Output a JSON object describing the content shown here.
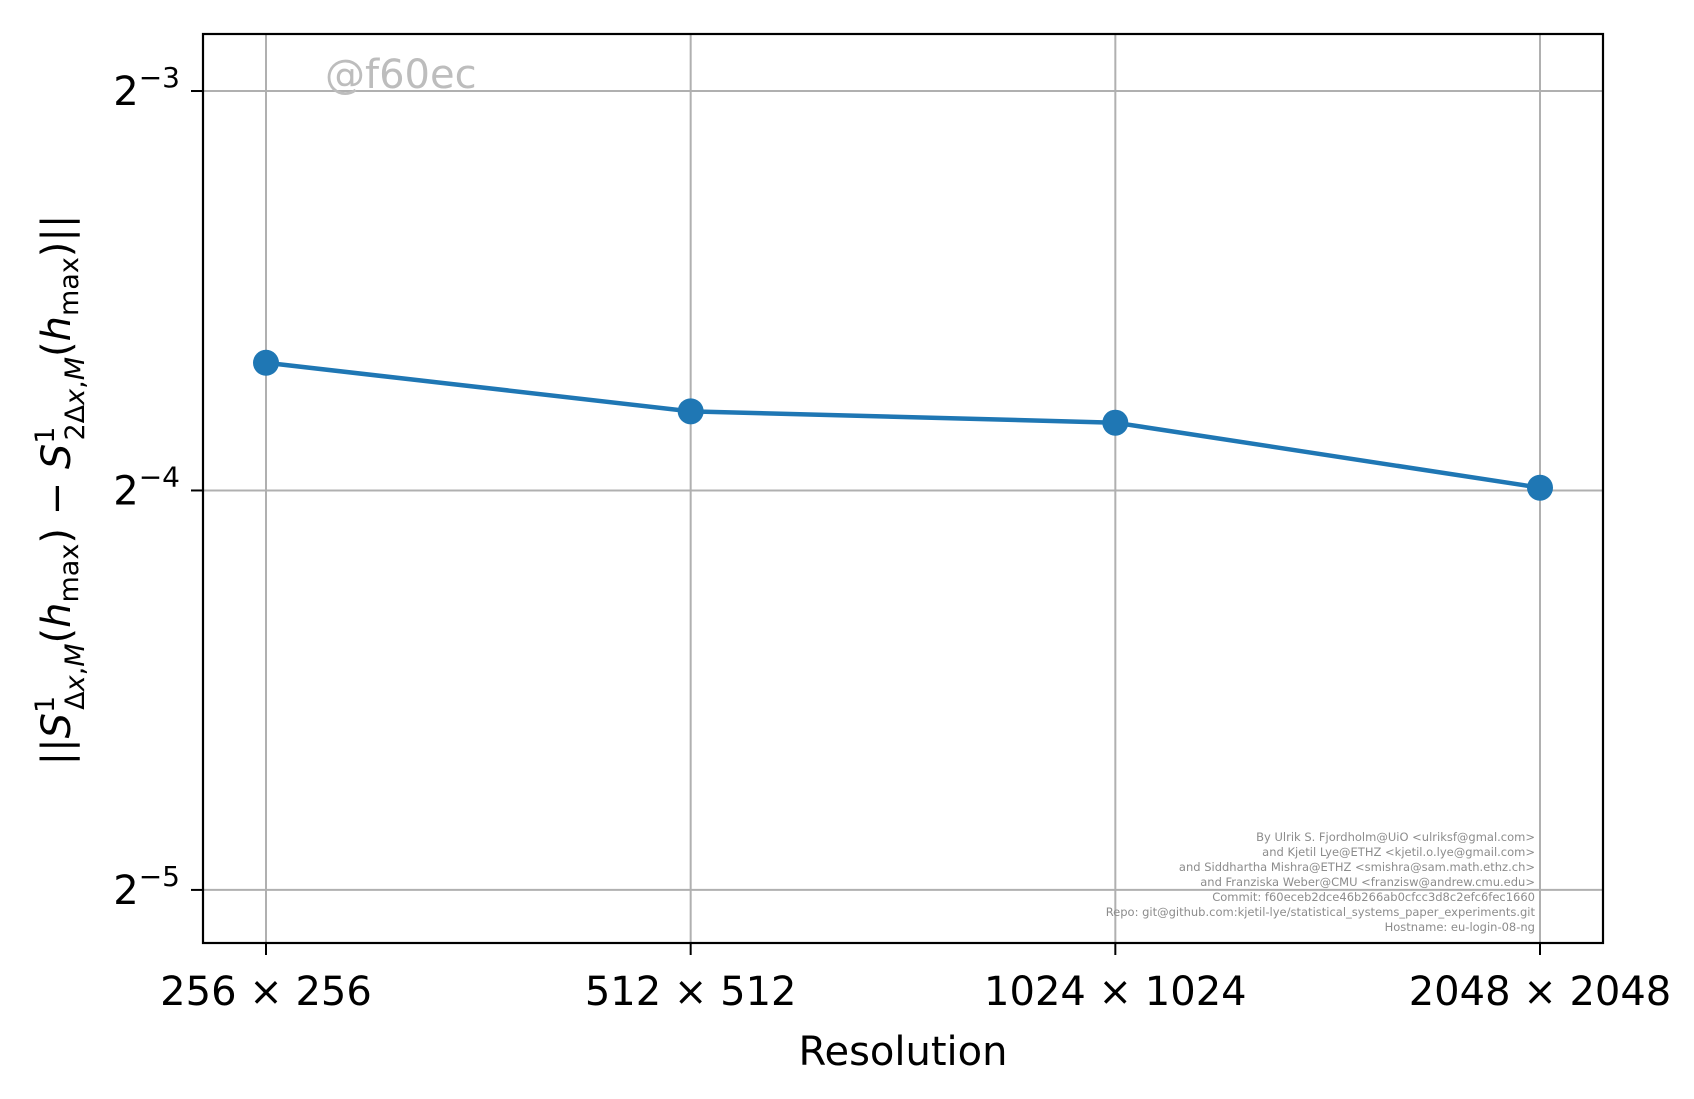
{
  "chart_data": {
    "type": "line",
    "categories": [
      "256 × 256",
      "512 × 512",
      "1024 × 1024",
      "2048 × 2048"
    ],
    "series": [
      {
        "values": [
          0.078,
          0.0717,
          0.0703,
          0.0628
        ],
        "color": "#1f77b4"
      }
    ],
    "xlabel": "Resolution",
    "ylabel": "||S¹Δx,M(hmax) − S¹2Δx,M(hmax)||",
    "yscale": "log2",
    "ylim": [
      0.0285,
      0.138
    ],
    "yticks": [
      {
        "value": 0.125,
        "base": "2",
        "exp": "−3"
      },
      {
        "value": 0.0625,
        "base": "2",
        "exp": "−4"
      },
      {
        "value": 0.03125,
        "base": "2",
        "exp": "−5"
      }
    ],
    "grid": true,
    "watermark": "@f60ec",
    "credits": [
      "By Ulrik S. Fjordholm@UiO <ulriksf@gmal.com>",
      "and Kjetil Lye@ETHZ <kjetil.o.lye@gmail.com>",
      "and Siddhartha Mishra@ETHZ <smishra@sam.math.ethz.ch>",
      "and Franziska Weber@CMU <franzisw@andrew.cmu.edu>",
      "Commit: f60eceb2dce46b266ab0cfcc3d8c2efc6fec1660",
      "Repo: git@github.com:kjetil-lye/statistical_systems_paper_experiments.git",
      "Hostname: eu-login-08-ng"
    ]
  }
}
